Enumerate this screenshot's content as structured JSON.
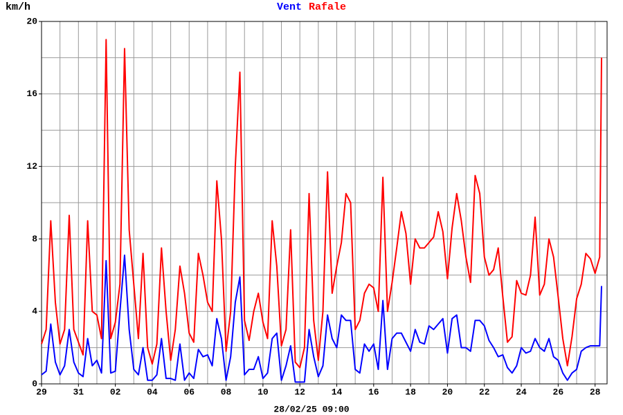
{
  "chart_data": {
    "type": "line",
    "ylabel": "km/h",
    "footer": "28/02/25 09:00",
    "x": [
      0,
      0.25,
      0.5,
      0.75,
      1,
      1.25,
      1.5,
      1.75,
      2,
      2.25,
      2.5,
      2.75,
      3,
      3.25,
      3.5,
      3.75,
      4,
      4.25,
      4.5,
      4.75,
      5,
      5.25,
      5.5,
      5.75,
      6,
      6.25,
      6.5,
      6.75,
      7,
      7.25,
      7.5,
      7.75,
      8,
      8.25,
      8.5,
      8.75,
      9,
      9.25,
      9.5,
      9.75,
      10,
      10.25,
      10.5,
      10.75,
      11,
      11.25,
      11.5,
      11.75,
      12,
      12.25,
      12.5,
      12.75,
      13,
      13.25,
      13.5,
      13.75,
      14,
      14.25,
      14.5,
      14.75,
      15,
      15.25,
      15.5,
      15.75,
      16,
      16.25,
      16.5,
      16.75,
      17,
      17.25,
      17.5,
      17.75,
      18,
      18.25,
      18.5,
      18.75,
      19,
      19.25,
      19.5,
      19.75,
      20,
      20.25,
      20.5,
      20.75,
      21,
      21.25,
      21.5,
      21.75,
      22,
      22.25,
      22.5,
      22.75,
      23,
      23.25,
      23.5,
      23.75,
      24,
      24.25,
      24.5,
      24.75,
      25,
      25.25,
      25.5,
      25.75,
      26,
      26.25,
      26.5,
      26.75,
      27,
      27.25,
      27.5,
      27.75,
      28,
      28.25,
      28.5,
      28.75,
      29,
      29.25,
      29.5,
      29.75,
      30,
      30.25,
      30.35
    ],
    "series": [
      {
        "name": "Vent",
        "color": "#0000ff",
        "values": [
          0.5,
          0.7,
          3.3,
          1.2,
          0.5,
          1.0,
          3.0,
          1.2,
          0.6,
          0.4,
          2.5,
          1.0,
          1.3,
          0.6,
          6.8,
          0.6,
          0.7,
          4.0,
          7.1,
          3.0,
          0.8,
          0.5,
          2.0,
          0.2,
          0.2,
          0.5,
          2.5,
          0.3,
          0.3,
          0.2,
          2.2,
          0.2,
          0.6,
          0.3,
          1.9,
          1.5,
          1.6,
          1.0,
          3.6,
          2.5,
          0.2,
          1.5,
          4.5,
          5.9,
          0.5,
          0.8,
          0.8,
          1.5,
          0.3,
          0.6,
          2.5,
          2.8,
          0.2,
          1.0,
          2.1,
          0.1,
          0.1,
          0.1,
          3.0,
          1.5,
          0.4,
          1.0,
          3.8,
          2.5,
          2.0,
          3.8,
          3.5,
          3.5,
          0.8,
          0.6,
          2.2,
          1.8,
          2.2,
          0.8,
          4.6,
          0.8,
          2.5,
          2.8,
          2.8,
          2.3,
          1.8,
          3.0,
          2.3,
          2.2,
          3.2,
          3.0,
          3.3,
          3.6,
          1.7,
          3.6,
          3.8,
          2.0,
          2.0,
          1.8,
          3.5,
          3.5,
          3.2,
          2.4,
          2.0,
          1.5,
          1.6,
          0.9,
          0.6,
          1.0,
          2.0,
          1.7,
          1.8,
          2.5,
          2.0,
          1.8,
          2.5,
          1.5,
          1.3,
          0.6,
          0.2,
          0.6,
          0.8,
          1.8,
          2.0,
          2.1,
          2.1,
          2.1,
          5.4
        ]
      },
      {
        "name": "Rafale",
        "color": "#ff0000",
        "values": [
          2.2,
          3.0,
          9.0,
          4.5,
          2.2,
          3.0,
          9.3,
          3.0,
          2.3,
          1.6,
          9.0,
          4.0,
          3.8,
          2.5,
          19,
          2.5,
          3.4,
          5.5,
          18.5,
          8.5,
          5.5,
          2.5,
          7.2,
          2.0,
          1.1,
          2.2,
          7.5,
          4.0,
          1.3,
          3.0,
          6.5,
          5.0,
          2.8,
          2.3,
          7.2,
          6.0,
          4.5,
          4.0,
          11.2,
          8.0,
          1.8,
          4.0,
          12.0,
          17.2,
          3.5,
          2.4,
          4.0,
          5.0,
          3.4,
          2.5,
          9.0,
          6.5,
          2.1,
          3.0,
          8.5,
          1.2,
          0.9,
          2.0,
          10.5,
          3.5,
          1.3,
          4.0,
          11.7,
          5.0,
          6.5,
          7.8,
          10.5,
          10.0,
          3.0,
          3.5,
          5.0,
          5.5,
          5.3,
          4.0,
          11.4,
          4.0,
          5.6,
          7.5,
          9.5,
          8.3,
          5.5,
          8.0,
          7.5,
          7.5,
          7.8,
          8.1,
          9.5,
          8.4,
          5.8,
          8.6,
          10.5,
          9.0,
          7.0,
          5.6,
          11.5,
          10.5,
          7.0,
          6.0,
          6.3,
          7.5,
          4.8,
          2.3,
          2.6,
          5.7,
          5.0,
          4.9,
          6.0,
          9.2,
          4.9,
          5.5,
          8.0,
          7.0,
          4.8,
          2.5,
          1.0,
          2.6,
          4.7,
          5.5,
          7.2,
          6.9,
          6.1,
          7.0,
          18
        ]
      }
    ],
    "xlim": [
      0,
      30.65
    ],
    "xticks": [
      {
        "value": 0,
        "label": "29"
      },
      {
        "value": 2,
        "label": "31"
      },
      {
        "value": 4,
        "label": "02"
      },
      {
        "value": 6,
        "label": "04"
      },
      {
        "value": 8,
        "label": "06"
      },
      {
        "value": 10,
        "label": "08"
      },
      {
        "value": 12,
        "label": "10"
      },
      {
        "value": 14,
        "label": "12"
      },
      {
        "value": 16,
        "label": "14"
      },
      {
        "value": 18,
        "label": "16"
      },
      {
        "value": 20,
        "label": "18"
      },
      {
        "value": 22,
        "label": "20"
      },
      {
        "value": 24,
        "label": "22"
      },
      {
        "value": 26,
        "label": "24"
      },
      {
        "value": 28,
        "label": "26"
      },
      {
        "value": 30,
        "label": "28"
      }
    ],
    "ylim": [
      0,
      20
    ],
    "yticks": [
      0,
      4,
      8,
      12,
      16,
      20
    ],
    "grid": true
  }
}
